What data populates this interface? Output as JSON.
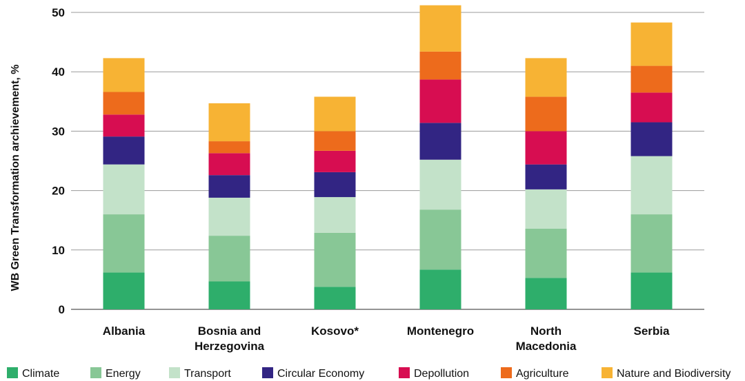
{
  "chart_data": {
    "type": "bar",
    "stacked": true,
    "title": "",
    "xlabel": "",
    "ylabel": "WB Green Transformation archievement, %",
    "ylim": [
      0,
      50
    ],
    "yticks": [
      0,
      10,
      20,
      30,
      40,
      50
    ],
    "grid": true,
    "legend_position": "bottom",
    "categories": [
      [
        "Albania"
      ],
      [
        "Bosnia and",
        "Herzegovina"
      ],
      [
        "Kosovo*"
      ],
      [
        "Montenegro"
      ],
      [
        "North",
        "Macedonia"
      ],
      [
        "Serbia"
      ]
    ],
    "series": [
      {
        "name": "Climate",
        "color": "#2eae6b",
        "values": [
          6.2,
          4.7,
          3.8,
          6.7,
          5.3,
          6.2
        ]
      },
      {
        "name": "Energy",
        "color": "#88c796",
        "values": [
          9.8,
          7.7,
          9.1,
          10.1,
          8.3,
          9.8
        ]
      },
      {
        "name": "Transport",
        "color": "#c3e2c9",
        "values": [
          8.4,
          6.4,
          6.0,
          8.4,
          6.6,
          9.8
        ]
      },
      {
        "name": "Circular Economy",
        "color": "#322583",
        "values": [
          4.7,
          3.8,
          4.2,
          6.2,
          4.2,
          5.7
        ]
      },
      {
        "name": "Depollution",
        "color": "#d70d51",
        "values": [
          3.7,
          3.7,
          3.6,
          7.3,
          5.6,
          5.0
        ]
      },
      {
        "name": "Agriculture",
        "color": "#ed6b1c",
        "values": [
          3.8,
          2.0,
          3.3,
          4.7,
          5.8,
          4.5
        ]
      },
      {
        "name": "Nature and Biodiversity",
        "color": "#f7b334",
        "values": [
          5.7,
          6.4,
          5.8,
          7.8,
          6.5,
          7.3
        ]
      }
    ]
  }
}
